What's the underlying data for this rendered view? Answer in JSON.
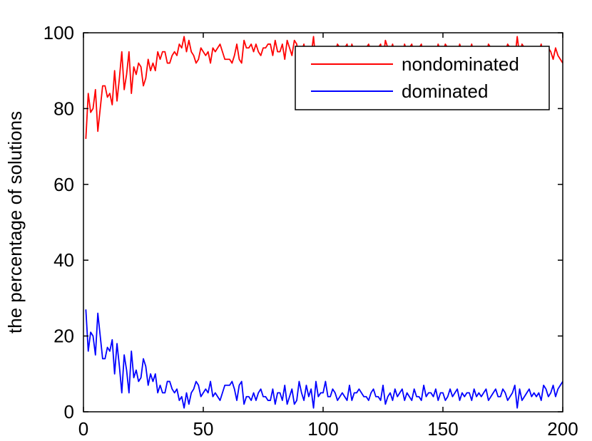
{
  "chart_data": {
    "type": "line",
    "xlabel": "",
    "ylabel": "the percentage of solutions",
    "xlim": [
      0,
      200
    ],
    "ylim": [
      0,
      100
    ],
    "xticks": [
      0,
      50,
      100,
      150,
      200
    ],
    "yticks": [
      0,
      20,
      40,
      60,
      80,
      100
    ],
    "grid": false,
    "legend_position": "top-right",
    "series": [
      {
        "name": "nondominated",
        "color": "#ff0000",
        "x": [
          1,
          2,
          3,
          4,
          5,
          6,
          7,
          8,
          9,
          10,
          11,
          12,
          13,
          14,
          15,
          16,
          17,
          18,
          19,
          20,
          21,
          22,
          23,
          24,
          25,
          26,
          27,
          28,
          29,
          30,
          31,
          32,
          33,
          34,
          35,
          36,
          37,
          38,
          39,
          40,
          41,
          42,
          43,
          44,
          45,
          46,
          47,
          48,
          49,
          50,
          51,
          52,
          53,
          54,
          55,
          56,
          57,
          58,
          59,
          60,
          61,
          62,
          63,
          64,
          65,
          66,
          67,
          68,
          69,
          70,
          71,
          72,
          73,
          74,
          75,
          76,
          77,
          78,
          79,
          80,
          81,
          82,
          83,
          84,
          85,
          86,
          87,
          88,
          89,
          90,
          91,
          92,
          93,
          94,
          95,
          96,
          97,
          98,
          99,
          100,
          101,
          102,
          103,
          104,
          105,
          106,
          107,
          108,
          109,
          110,
          111,
          112,
          113,
          114,
          115,
          116,
          117,
          118,
          119,
          120,
          121,
          122,
          123,
          124,
          125,
          126,
          127,
          128,
          129,
          130,
          131,
          132,
          133,
          134,
          135,
          136,
          137,
          138,
          139,
          140,
          141,
          142,
          143,
          144,
          145,
          146,
          147,
          148,
          149,
          150,
          151,
          152,
          153,
          154,
          155,
          156,
          157,
          158,
          159,
          160,
          161,
          162,
          163,
          164,
          165,
          166,
          167,
          168,
          169,
          170,
          171,
          172,
          173,
          174,
          175,
          176,
          177,
          178,
          179,
          180,
          181,
          182,
          183,
          184,
          185,
          186,
          187,
          188,
          189,
          190,
          191,
          192,
          193,
          194,
          195,
          196,
          197,
          198,
          199,
          200
        ],
        "values": [
          72,
          84,
          79,
          80,
          85,
          74,
          80,
          86,
          86,
          83,
          84,
          81,
          90,
          82,
          88,
          95,
          85,
          89,
          95,
          84,
          91,
          89,
          92,
          91,
          86,
          88,
          93,
          90,
          92,
          90,
          95,
          93,
          95,
          95,
          92,
          92,
          94,
          95,
          94,
          97,
          96,
          99,
          95,
          98,
          95,
          94,
          92,
          93,
          96,
          95,
          94,
          95,
          92,
          96,
          95,
          96,
          97,
          95,
          93,
          93,
          93,
          92,
          94,
          97,
          93,
          92,
          98,
          96,
          96,
          97,
          95,
          97,
          95,
          94,
          96,
          96,
          97,
          97,
          94,
          98,
          95,
          95,
          97,
          93,
          98,
          96,
          94,
          98,
          97,
          92,
          95,
          97,
          93,
          96,
          94,
          99,
          92,
          96,
          95,
          95,
          92,
          96,
          96,
          94,
          95,
          97,
          96,
          95,
          96,
          97,
          93,
          97,
          95,
          95,
          94,
          95,
          96,
          96,
          97,
          95,
          94,
          96,
          96,
          97,
          93,
          98,
          96,
          95,
          97,
          94,
          96,
          95,
          94,
          97,
          95,
          96,
          97,
          94,
          96,
          96,
          97,
          93,
          96,
          95,
          95,
          96,
          94,
          97,
          95,
          95,
          97,
          96,
          94,
          96,
          95,
          94,
          97,
          95,
          96,
          95,
          95,
          97,
          94,
          96,
          95,
          96,
          95,
          94,
          97,
          96,
          95,
          94,
          96,
          96,
          94,
          95,
          97,
          96,
          95,
          93,
          99,
          94,
          97,
          96,
          95,
          94,
          96,
          95,
          96,
          95,
          97,
          93,
          94,
          96,
          95,
          93,
          96,
          94,
          93,
          92
        ]
      },
      {
        "name": "dominated",
        "color": "#0000ff",
        "x": [
          1,
          2,
          3,
          4,
          5,
          6,
          7,
          8,
          9,
          10,
          11,
          12,
          13,
          14,
          15,
          16,
          17,
          18,
          19,
          20,
          21,
          22,
          23,
          24,
          25,
          26,
          27,
          28,
          29,
          30,
          31,
          32,
          33,
          34,
          35,
          36,
          37,
          38,
          39,
          40,
          41,
          42,
          43,
          44,
          45,
          46,
          47,
          48,
          49,
          50,
          51,
          52,
          53,
          54,
          55,
          56,
          57,
          58,
          59,
          60,
          61,
          62,
          63,
          64,
          65,
          66,
          67,
          68,
          69,
          70,
          71,
          72,
          73,
          74,
          75,
          76,
          77,
          78,
          79,
          80,
          81,
          82,
          83,
          84,
          85,
          86,
          87,
          88,
          89,
          90,
          91,
          92,
          93,
          94,
          95,
          96,
          97,
          98,
          99,
          100,
          101,
          102,
          103,
          104,
          105,
          106,
          107,
          108,
          109,
          110,
          111,
          112,
          113,
          114,
          115,
          116,
          117,
          118,
          119,
          120,
          121,
          122,
          123,
          124,
          125,
          126,
          127,
          128,
          129,
          130,
          131,
          132,
          133,
          134,
          135,
          136,
          137,
          138,
          139,
          140,
          141,
          142,
          143,
          144,
          145,
          146,
          147,
          148,
          149,
          150,
          151,
          152,
          153,
          154,
          155,
          156,
          157,
          158,
          159,
          160,
          161,
          162,
          163,
          164,
          165,
          166,
          167,
          168,
          169,
          170,
          171,
          172,
          173,
          174,
          175,
          176,
          177,
          178,
          179,
          180,
          181,
          182,
          183,
          184,
          185,
          186,
          187,
          188,
          189,
          190,
          191,
          192,
          193,
          194,
          195,
          196,
          197,
          198,
          199,
          200
        ],
        "values": [
          27,
          16,
          21,
          20,
          15,
          26,
          20,
          14,
          14,
          17,
          16,
          19,
          10,
          18,
          12,
          5,
          15,
          11,
          5,
          16,
          9,
          11,
          8,
          9,
          14,
          12,
          7,
          10,
          8,
          10,
          5,
          7,
          5,
          5,
          8,
          8,
          6,
          5,
          6,
          3,
          4,
          1,
          5,
          2,
          5,
          6,
          8,
          7,
          4,
          5,
          6,
          5,
          8,
          4,
          5,
          4,
          3,
          5,
          7,
          7,
          7,
          8,
          6,
          3,
          7,
          8,
          2,
          4,
          4,
          3,
          5,
          3,
          5,
          6,
          4,
          4,
          3,
          3,
          6,
          2,
          5,
          5,
          3,
          7,
          2,
          4,
          6,
          2,
          3,
          8,
          5,
          3,
          7,
          4,
          6,
          1,
          8,
          4,
          5,
          5,
          8,
          4,
          4,
          6,
          5,
          3,
          4,
          5,
          4,
          3,
          7,
          3,
          5,
          5,
          6,
          5,
          4,
          4,
          3,
          5,
          6,
          4,
          4,
          3,
          7,
          2,
          4,
          5,
          3,
          6,
          4,
          5,
          6,
          3,
          5,
          4,
          3,
          6,
          4,
          4,
          3,
          7,
          4,
          5,
          5,
          4,
          6,
          3,
          5,
          5,
          3,
          4,
          6,
          4,
          5,
          6,
          3,
          5,
          4,
          5,
          5,
          3,
          6,
          4,
          5,
          4,
          5,
          6,
          3,
          4,
          5,
          6,
          4,
          4,
          6,
          5,
          3,
          4,
          5,
          7,
          1,
          6,
          3,
          4,
          5,
          6,
          4,
          5,
          4,
          5,
          3,
          7,
          6,
          4,
          5,
          7,
          4,
          6,
          7,
          8
        ]
      }
    ]
  }
}
